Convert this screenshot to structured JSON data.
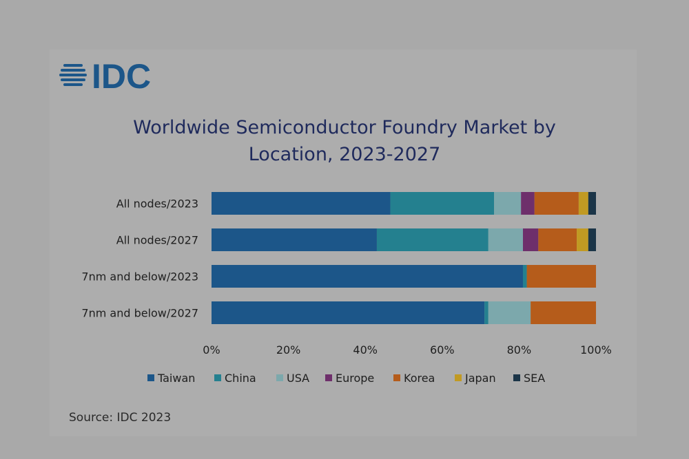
{
  "logo": {
    "text": "IDC"
  },
  "source": "Source: IDC 2023",
  "colors": {
    "Taiwan": "#1c5689",
    "China": "#24808f",
    "USA": "#7ca8ac",
    "Europe": "#6e2f6b",
    "Korea": "#b55c1b",
    "Japan": "#c19a23",
    "SEA": "#1b3548",
    "title": "#1f2a5c"
  },
  "chart_data": {
    "type": "bar",
    "orientation": "horizontal",
    "stacked": true,
    "title_lines": [
      "Worldwide Semiconductor Foundry Market by",
      "Location, 2023-2027"
    ],
    "categories": [
      "All nodes/2023",
      "All nodes/2027",
      "7nm and below/2023",
      "7nm and below/2027"
    ],
    "series": [
      {
        "name": "Taiwan",
        "values": [
          46.5,
          43,
          81,
          71
        ]
      },
      {
        "name": "China",
        "values": [
          27,
          29,
          1,
          1
        ]
      },
      {
        "name": "USA",
        "values": [
          7,
          9,
          0,
          11
        ]
      },
      {
        "name": "Europe",
        "values": [
          3.5,
          4,
          0,
          0
        ]
      },
      {
        "name": "Korea",
        "values": [
          11.5,
          10,
          18,
          17
        ]
      },
      {
        "name": "Japan",
        "values": [
          2.5,
          3,
          0,
          0
        ]
      },
      {
        "name": "SEA",
        "values": [
          2,
          2,
          0,
          0
        ]
      }
    ],
    "xlim": [
      0,
      100
    ],
    "xticks": [
      "0%",
      "20%",
      "40%",
      "60%",
      "80%",
      "100%"
    ],
    "legend_position": "bottom",
    "grid": false
  }
}
